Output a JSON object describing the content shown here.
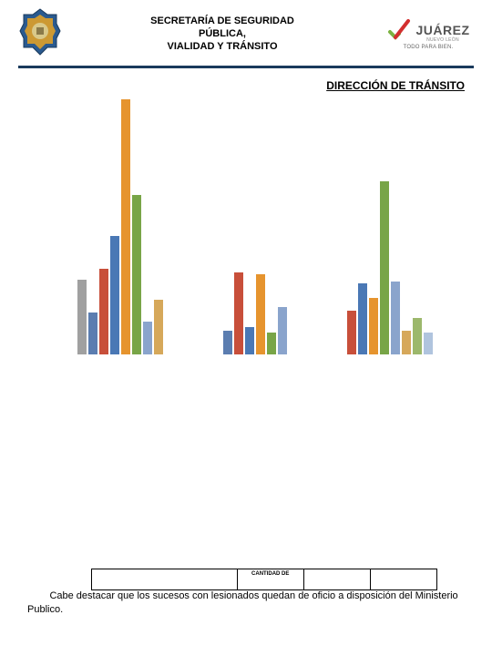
{
  "header": {
    "title_line1": "SECRETARÍA DE SEGURIDAD",
    "title_line2": "PÚBLICA,",
    "title_line3": "VIALIDAD Y TRÁNSITO",
    "brand_name": "JUÁREZ",
    "brand_sub": "NUEVO LEÓN",
    "brand_tagline": "TODO PARA BIEN.",
    "divider_color": "#1a3a5c"
  },
  "section_title": "DIRECCIÓN DE TRÁNSITO",
  "chart": {
    "type": "bar",
    "background_color": "#ffffff",
    "max_value": 280,
    "groups": [
      {
        "bars": [
          {
            "value": 82,
            "color": "#a0a0a0"
          },
          {
            "value": 46,
            "color": "#5b7db0"
          },
          {
            "value": 94,
            "color": "#c84f3a"
          },
          {
            "value": 130,
            "color": "#4a78b5"
          },
          {
            "value": 280,
            "color": "#e6942e"
          },
          {
            "value": 175,
            "color": "#78a547"
          },
          {
            "value": 36,
            "color": "#8aa4cc"
          },
          {
            "value": 60,
            "color": "#d6a85a"
          }
        ]
      },
      {
        "bars": [
          {
            "value": 26,
            "color": "#5b7db0"
          },
          {
            "value": 90,
            "color": "#c84f3a"
          },
          {
            "value": 30,
            "color": "#4a78b5"
          },
          {
            "value": 88,
            "color": "#e6942e"
          },
          {
            "value": 24,
            "color": "#78a547"
          },
          {
            "value": 52,
            "color": "#8aa4cc"
          }
        ]
      },
      {
        "bars": [
          {
            "value": 48,
            "color": "#c84f3a"
          },
          {
            "value": 78,
            "color": "#4a78b5"
          },
          {
            "value": 62,
            "color": "#e6942e"
          },
          {
            "value": 190,
            "color": "#78a547"
          },
          {
            "value": 80,
            "color": "#8aa4cc"
          },
          {
            "value": 26,
            "color": "#d6a85a"
          },
          {
            "value": 40,
            "color": "#9cb86c"
          },
          {
            "value": 24,
            "color": "#b0c4de"
          }
        ]
      }
    ]
  },
  "table": {
    "visible_header": "CANTIDAD DE",
    "columns": 4
  },
  "footer": {
    "text": "Cabe destacar que los sucesos con lesionados quedan de oficio a disposición del Ministerio Publico."
  },
  "badge": {
    "outer_color": "#2a5a8f",
    "inner_color": "#cc9933",
    "center_color": "#d9c98a"
  },
  "check_colors": {
    "green": "#7cb342",
    "red": "#d32f2f"
  }
}
